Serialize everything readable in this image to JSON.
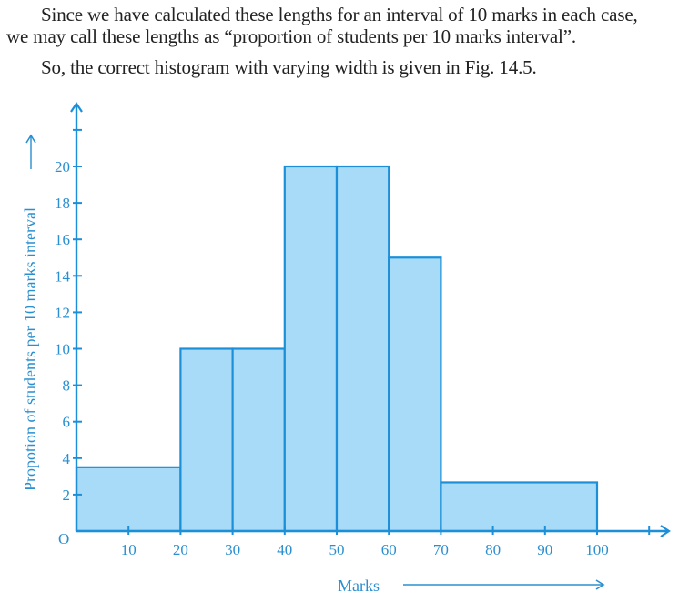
{
  "text": {
    "paragraph_1": "Since we have calculated these lengths for an interval of 10 marks in each case,",
    "paragraph_2": "we may call these lengths as “proportion of students per 10 marks interval”.",
    "paragraph_3": "So, the correct histogram with varying width is given in Fig. 14.5."
  },
  "colors": {
    "bar_fill": "#a7dbf8",
    "bar_stroke": "#1d8fd8",
    "axis": "#1d8fd8",
    "label": "#2a8fd0",
    "body_text": "#222222"
  },
  "chart_data": {
    "type": "bar",
    "variant": "histogram-varying-width",
    "title": "",
    "xlabel": "Marks",
    "ylabel": "Propotion of students per 10 marks interval",
    "origin_label": "O",
    "bins": [
      {
        "from": 0,
        "to": 20,
        "value": 3.5
      },
      {
        "from": 20,
        "to": 30,
        "value": 10
      },
      {
        "from": 30,
        "to": 40,
        "value": 10
      },
      {
        "from": 40,
        "to": 50,
        "value": 20
      },
      {
        "from": 50,
        "to": 60,
        "value": 20
      },
      {
        "from": 60,
        "to": 70,
        "value": 15
      },
      {
        "from": 70,
        "to": 100,
        "value": 2.67
      }
    ],
    "categories": [
      "0-20",
      "20-30",
      "30-40",
      "40-50",
      "50-60",
      "60-70",
      "70-100"
    ],
    "values": [
      3.5,
      10,
      10,
      20,
      20,
      15,
      2.67
    ],
    "x_ticks": [
      10,
      20,
      30,
      40,
      50,
      60,
      70,
      80,
      90,
      100,
      110
    ],
    "x_tick_labels": [
      "10",
      "20",
      "30",
      "40",
      "50",
      "60",
      "70",
      "80",
      "90",
      "100",
      ""
    ],
    "y_ticks": [
      2,
      4,
      6,
      8,
      10,
      12,
      14,
      16,
      18,
      20,
      22
    ],
    "y_tick_labels": [
      "2",
      "4",
      "6",
      "8",
      "10",
      "12",
      "14",
      "16",
      "18",
      "20",
      ""
    ],
    "xlim": [
      0,
      115
    ],
    "ylim": [
      0,
      23.5
    ],
    "grid": false,
    "legend": null
  }
}
